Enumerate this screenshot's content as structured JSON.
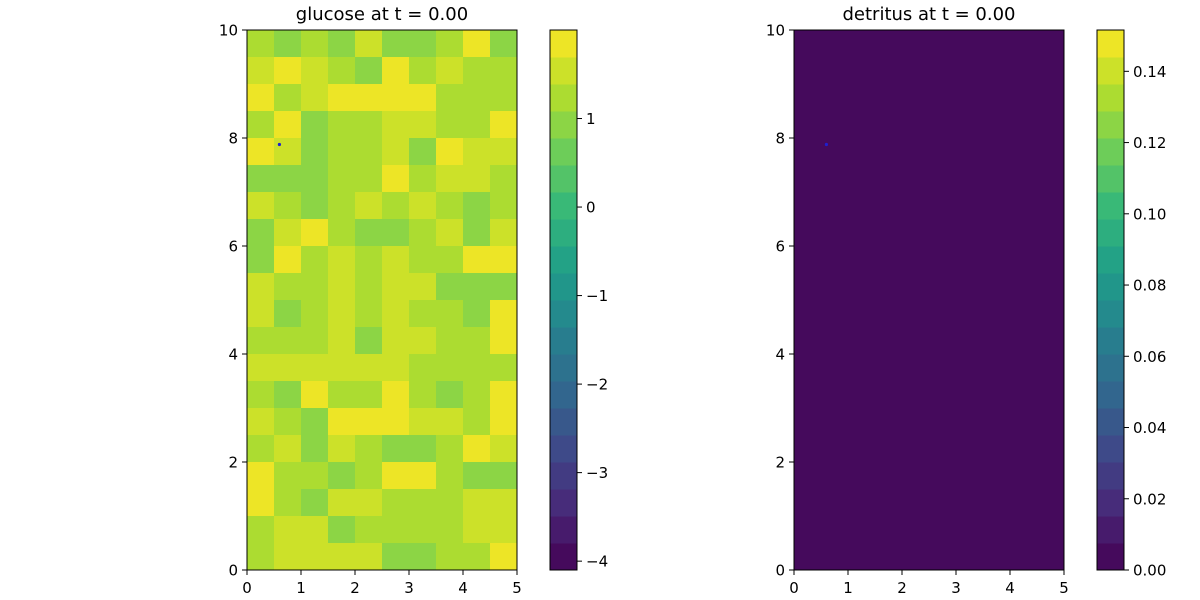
{
  "colors": {
    "viridis": [
      "#440154",
      "#482878",
      "#3e4989",
      "#31688e",
      "#26828e",
      "#1f9e89",
      "#35b779",
      "#6ece58",
      "#b5de2b",
      "#fde725"
    ],
    "marker": "#1f1fcf",
    "background": "#ffffff"
  },
  "chart_data": [
    {
      "type": "heatmap",
      "title": "glucose at t = 0.00",
      "xlim": [
        0,
        5
      ],
      "ylim": [
        0,
        10
      ],
      "x_ticks": [
        "0",
        "1",
        "2",
        "3",
        "4",
        "5"
      ],
      "y_ticks": [
        "0",
        "2",
        "4",
        "6",
        "8",
        "10"
      ],
      "grid": false,
      "ncols": 10,
      "nrows": 20,
      "rows_top_to_bottom": [
        [
          1.3,
          1.0,
          1.2,
          0.9,
          1.5,
          1.0,
          0.9,
          1.3,
          1.9,
          0.9
        ],
        [
          1.5,
          1.8,
          1.6,
          1.1,
          0.9,
          1.8,
          1.2,
          1.6,
          1.3,
          1.3
        ],
        [
          1.9,
          1.2,
          1.4,
          1.8,
          1.8,
          1.9,
          1.7,
          1.3,
          1.1,
          1.1
        ],
        [
          1.3,
          1.8,
          1.0,
          1.1,
          1.1,
          1.5,
          1.4,
          1.3,
          1.3,
          1.7
        ],
        [
          1.7,
          1.6,
          0.9,
          1.3,
          1.3,
          1.5,
          1.0,
          1.8,
          1.6,
          1.5
        ],
        [
          0.8,
          0.9,
          0.9,
          1.3,
          1.3,
          1.7,
          1.2,
          1.6,
          1.4,
          1.3
        ],
        [
          1.6,
          1.2,
          0.9,
          1.3,
          1.6,
          1.3,
          1.5,
          1.3,
          0.9,
          1.2
        ],
        [
          1.0,
          1.6,
          1.9,
          1.2,
          1.0,
          1.0,
          1.1,
          1.6,
          0.8,
          1.6
        ],
        [
          0.8,
          1.8,
          1.3,
          1.5,
          1.3,
          1.4,
          1.1,
          1.3,
          1.7,
          1.7
        ],
        [
          1.6,
          1.2,
          1.2,
          1.6,
          1.1,
          1.5,
          1.6,
          1.0,
          1.0,
          1.0
        ],
        [
          1.6,
          0.9,
          1.3,
          1.6,
          1.3,
          1.6,
          1.3,
          1.3,
          1.0,
          1.7
        ],
        [
          1.3,
          1.3,
          1.2,
          1.6,
          1.0,
          1.4,
          1.4,
          1.3,
          1.1,
          1.7
        ],
        [
          1.4,
          1.4,
          1.4,
          1.4,
          1.5,
          1.5,
          1.2,
          1.3,
          1.1,
          1.3
        ],
        [
          1.3,
          0.9,
          1.8,
          1.3,
          1.2,
          1.8,
          1.3,
          1.0,
          1.2,
          1.8
        ],
        [
          1.5,
          1.2,
          1.0,
          1.7,
          1.7,
          1.7,
          1.6,
          1.6,
          1.1,
          1.8
        ],
        [
          1.2,
          1.4,
          1.0,
          1.6,
          1.2,
          1.0,
          0.9,
          1.3,
          1.7,
          1.6
        ],
        [
          1.7,
          1.2,
          1.3,
          1.0,
          1.1,
          1.7,
          1.9,
          1.3,
          1.0,
          1.0
        ],
        [
          1.9,
          1.1,
          1.0,
          1.5,
          1.4,
          1.2,
          1.3,
          1.1,
          1.4,
          1.5
        ],
        [
          1.2,
          1.6,
          1.6,
          1.0,
          1.3,
          1.2,
          1.2,
          1.1,
          1.4,
          1.4
        ],
        [
          1.3,
          1.4,
          1.4,
          1.6,
          1.6,
          1.0,
          1.0,
          1.2,
          1.1,
          1.7
        ]
      ],
      "marker_point": [
        0.6,
        7.88
      ],
      "colorbar": {
        "vmin": -4.1,
        "vmax": 2.0,
        "levels": 20,
        "ticks": [
          1,
          0,
          -1,
          -2,
          -3,
          -4
        ],
        "tick_labels": [
          "1",
          "0",
          "−1",
          "−2",
          "−3",
          "−4"
        ]
      }
    },
    {
      "type": "heatmap",
      "title": "detritus at t = 0.00",
      "xlim": [
        0,
        5
      ],
      "ylim": [
        0,
        10
      ],
      "x_ticks": [
        "0",
        "1",
        "2",
        "3",
        "4",
        "5"
      ],
      "y_ticks": [
        "0",
        "2",
        "4",
        "6",
        "8",
        "10"
      ],
      "grid": false,
      "uniform_value": 0.0,
      "marker_point": [
        0.6,
        7.88
      ],
      "colorbar": {
        "vmin": 0.0,
        "vmax": 0.1516,
        "levels": 20,
        "ticks": [
          0.0,
          0.02,
          0.04,
          0.06,
          0.08,
          0.1,
          0.12,
          0.14
        ],
        "tick_labels": [
          "0.00",
          "0.02",
          "0.04",
          "0.06",
          "0.08",
          "0.10",
          "0.12",
          "0.14"
        ]
      }
    }
  ]
}
